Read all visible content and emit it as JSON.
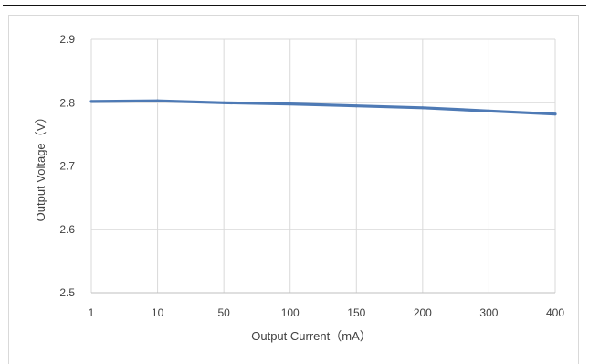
{
  "chart_data": {
    "type": "line",
    "title": "",
    "xlabel": "Output Current（mA）",
    "ylabel": "Output Voltage（V）",
    "categories": [
      "1",
      "10",
      "50",
      "100",
      "150",
      "200",
      "300",
      "400"
    ],
    "series": [
      {
        "values": [
          2.802,
          2.803,
          2.8,
          2.798,
          2.795,
          2.792,
          2.787,
          2.782
        ],
        "color": "#4e7ab5"
      }
    ],
    "ylim": [
      2.5,
      2.9
    ],
    "yticks": [
      "2.5",
      "2.6",
      "2.7",
      "2.8",
      "2.9"
    ],
    "grid": true,
    "legend": "none"
  }
}
